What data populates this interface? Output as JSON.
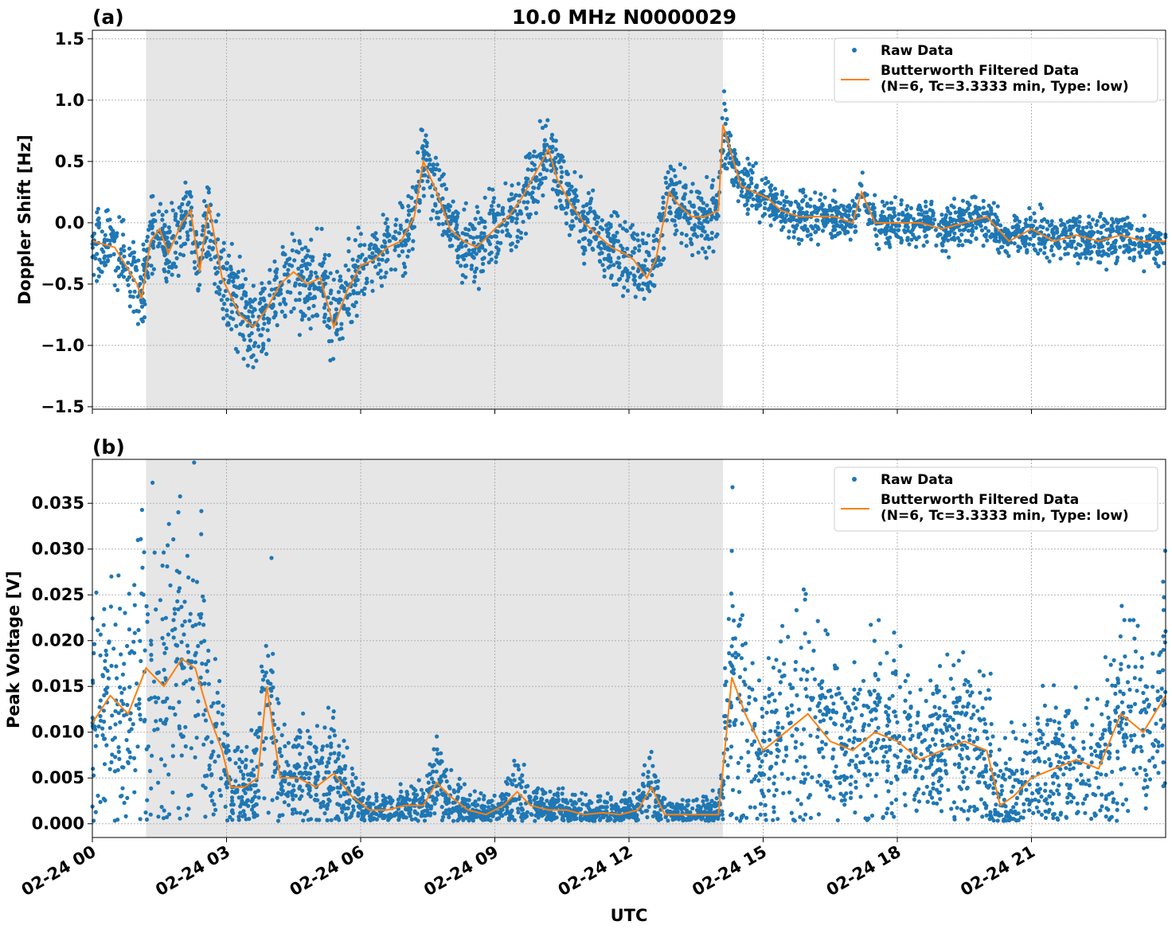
{
  "title": "10.0 MHz N0000029",
  "xlabel": "UTC",
  "legend": {
    "raw_label": "Raw Data",
    "filtered_label_line1": "Butterworth Filtered Data",
    "filtered_label_line2": "(N=6, Tc=3.3333 min, Type: low)"
  },
  "colors": {
    "raw": "#1f77b4",
    "filtered": "#ff7f0e",
    "shade": "#e6e6e6"
  },
  "chart_data": [
    {
      "type": "scatter",
      "panel_label": "(a)",
      "ylabel": "Doppler Shift [Hz]",
      "xlim": [
        0,
        24
      ],
      "ylim": [
        -1.52,
        1.57
      ],
      "x_ticks": [
        0,
        3,
        6,
        9,
        12,
        15,
        18,
        21
      ],
      "x_tick_labels": [
        "02-24 00",
        "02-24 03",
        "02-24 06",
        "02-24 09",
        "02-24 12",
        "02-24 15",
        "02-24 18",
        "02-24 21"
      ],
      "y_ticks": [
        -1.5,
        -1.0,
        -0.5,
        0.0,
        0.5,
        1.0,
        1.5
      ],
      "y_tick_labels": [
        "−1.5",
        "−1.0",
        "−0.5",
        "0.0",
        "0.5",
        "1.0",
        "1.5"
      ],
      "grid": true,
      "legend_position": "top-right",
      "shaded_interval": [
        1.2,
        14.1
      ],
      "series": [
        {
          "name": "Butterworth Filtered Data",
          "x": [
            0.0,
            0.5,
            1.0,
            1.1,
            1.3,
            1.5,
            1.7,
            2.0,
            2.2,
            2.4,
            2.6,
            2.9,
            3.1,
            3.3,
            3.6,
            3.9,
            4.2,
            4.5,
            4.8,
            5.1,
            5.4,
            5.7,
            6.0,
            6.3,
            6.6,
            6.9,
            7.2,
            7.4,
            7.7,
            8.0,
            8.3,
            8.6,
            9.0,
            9.3,
            9.6,
            9.9,
            10.2,
            10.4,
            10.7,
            11.0,
            11.3,
            11.6,
            11.9,
            12.1,
            12.4,
            12.6,
            12.9,
            13.1,
            13.4,
            13.7,
            14.0,
            14.1,
            14.3,
            14.5,
            14.8,
            15.1,
            15.4,
            15.8,
            16.2,
            16.6,
            17.0,
            17.2,
            17.5,
            18.0,
            18.5,
            19.0,
            19.5,
            20.0,
            20.5,
            21.0,
            21.5,
            22.0,
            22.5,
            23.0,
            23.5,
            24.0
          ],
          "values": [
            -0.15,
            -0.2,
            -0.5,
            -0.62,
            -0.15,
            -0.05,
            -0.25,
            0.0,
            0.1,
            -0.4,
            0.15,
            -0.45,
            -0.6,
            -0.75,
            -0.85,
            -0.7,
            -0.5,
            -0.4,
            -0.5,
            -0.45,
            -0.85,
            -0.55,
            -0.35,
            -0.3,
            -0.2,
            -0.15,
            0.05,
            0.5,
            0.25,
            -0.05,
            -0.15,
            -0.2,
            -0.05,
            0.05,
            0.2,
            0.4,
            0.6,
            0.35,
            0.15,
            0.0,
            -0.1,
            -0.2,
            -0.25,
            -0.3,
            -0.45,
            -0.3,
            0.25,
            0.15,
            0.05,
            0.05,
            0.1,
            0.8,
            0.55,
            0.3,
            0.25,
            0.2,
            0.1,
            0.05,
            0.05,
            0.05,
            0.0,
            0.25,
            0.0,
            0.0,
            0.0,
            -0.05,
            0.0,
            0.05,
            -0.15,
            -0.05,
            -0.15,
            -0.1,
            -0.15,
            -0.1,
            -0.15,
            -0.15
          ]
        }
      ],
      "raw_note": "Raw Data"
    },
    {
      "type": "scatter",
      "panel_label": "(b)",
      "ylabel": "Peak Voltage [V]",
      "xlim": [
        0,
        24
      ],
      "ylim": [
        -0.0015,
        0.0398
      ],
      "x_ticks": [
        0,
        3,
        6,
        9,
        12,
        15,
        18,
        21
      ],
      "x_tick_labels": [
        "02-24 00",
        "02-24 03",
        "02-24 06",
        "02-24 09",
        "02-24 12",
        "02-24 15",
        "02-24 18",
        "02-24 21"
      ],
      "y_ticks": [
        0.0,
        0.005,
        0.01,
        0.015,
        0.02,
        0.025,
        0.03,
        0.035
      ],
      "y_tick_labels": [
        "0.000",
        "0.005",
        "0.010",
        "0.015",
        "0.020",
        "0.025",
        "0.030",
        "0.035"
      ],
      "grid": true,
      "legend_position": "top-right",
      "shaded_interval": [
        1.2,
        14.1
      ],
      "series": [
        {
          "name": "Butterworth Filtered Data",
          "x": [
            0.0,
            0.4,
            0.8,
            1.2,
            1.6,
            2.0,
            2.3,
            2.6,
            2.9,
            3.1,
            3.4,
            3.7,
            3.9,
            4.2,
            4.6,
            5.0,
            5.4,
            5.8,
            6.2,
            6.6,
            7.0,
            7.4,
            7.7,
            8.0,
            8.4,
            8.8,
            9.2,
            9.5,
            9.8,
            10.2,
            10.6,
            11.0,
            11.4,
            11.8,
            12.2,
            12.5,
            12.8,
            13.2,
            13.6,
            14.0,
            14.1,
            14.3,
            14.6,
            15.0,
            15.5,
            16.0,
            16.5,
            17.0,
            17.5,
            18.0,
            18.5,
            19.0,
            19.5,
            20.0,
            20.3,
            20.6,
            21.0,
            21.5,
            22.0,
            22.5,
            23.0,
            23.5,
            24.0
          ],
          "values": [
            0.011,
            0.014,
            0.012,
            0.017,
            0.015,
            0.018,
            0.017,
            0.012,
            0.008,
            0.004,
            0.004,
            0.005,
            0.015,
            0.005,
            0.005,
            0.004,
            0.0055,
            0.003,
            0.0015,
            0.0015,
            0.002,
            0.002,
            0.0045,
            0.003,
            0.0015,
            0.001,
            0.002,
            0.0035,
            0.002,
            0.0015,
            0.0015,
            0.001,
            0.0012,
            0.001,
            0.0015,
            0.004,
            0.001,
            0.001,
            0.001,
            0.001,
            0.006,
            0.016,
            0.012,
            0.008,
            0.01,
            0.012,
            0.009,
            0.008,
            0.01,
            0.009,
            0.007,
            0.008,
            0.009,
            0.008,
            0.002,
            0.003,
            0.005,
            0.006,
            0.007,
            0.006,
            0.012,
            0.01,
            0.014
          ]
        }
      ],
      "raw_note": "Raw Data"
    }
  ]
}
